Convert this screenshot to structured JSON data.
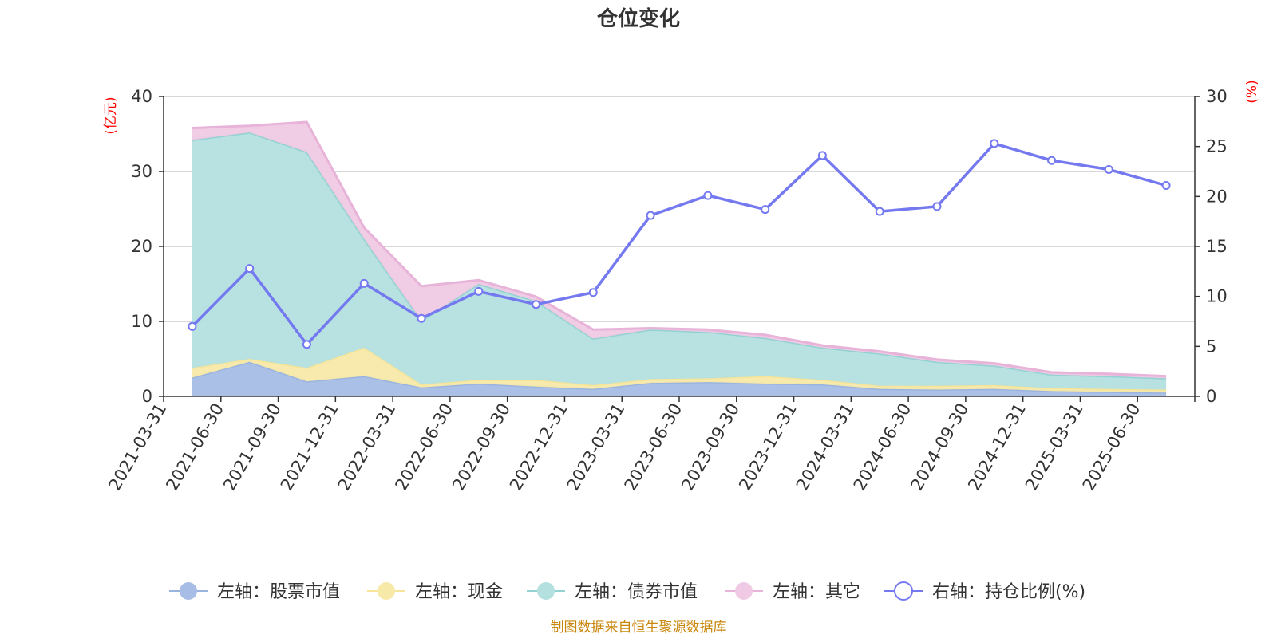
{
  "chart_data": {
    "type": "area",
    "title": "仓位变化",
    "left_unit": "(亿元)",
    "right_unit": "(%)",
    "categories": [
      "2021-03-31",
      "2021-06-30",
      "2021-09-30",
      "2021-12-31",
      "2022-03-31",
      "2022-06-30",
      "2022-09-30",
      "2022-12-31",
      "2023-03-31",
      "2023-06-30",
      "2023-09-30",
      "2023-12-31",
      "2024-03-31",
      "2024-06-30",
      "2024-09-30",
      "2024-12-31",
      "2025-03-31",
      "2025-06-30"
    ],
    "left_axis": {
      "min": 0,
      "max": 40,
      "ticks": [
        "0",
        "10",
        "20",
        "30",
        "40"
      ]
    },
    "right_axis": {
      "min": 0,
      "max": 30,
      "ticks": [
        "0",
        "5",
        "10",
        "15",
        "20",
        "25",
        "30"
      ]
    },
    "stacked_series": [
      {
        "name": "左轴：股票市值",
        "color": "#a7bde6",
        "line_color": "#9ab4e0",
        "values": [
          2.5,
          4.6,
          2.0,
          2.7,
          1.2,
          1.7,
          1.3,
          1.0,
          1.8,
          1.9,
          1.7,
          1.6,
          1.0,
          0.9,
          1.0,
          0.7,
          0.6,
          0.5
        ]
      },
      {
        "name": "左轴：现金",
        "color": "#f7e9a8",
        "line_color": "#f5e49a",
        "values": [
          1.3,
          0.4,
          1.8,
          3.8,
          0.4,
          0.5,
          0.9,
          0.5,
          0.5,
          0.5,
          1.0,
          0.6,
          0.4,
          0.5,
          0.5,
          0.4,
          0.4,
          0.4
        ]
      },
      {
        "name": "左轴：债券市值",
        "color": "#b4e0e0",
        "line_color": "#93d2d2",
        "values": [
          30.4,
          30.2,
          28.8,
          14.5,
          8.5,
          12.8,
          10.5,
          6.2,
          6.6,
          6.2,
          5.1,
          4.3,
          4.3,
          3.2,
          2.6,
          1.8,
          1.7,
          1.5
        ]
      },
      {
        "name": "左轴：其它",
        "color": "#f0c9e4",
        "line_color": "#e7b3d8",
        "values": [
          1.6,
          0.9,
          4.0,
          1.5,
          4.6,
          0.5,
          0.6,
          1.2,
          0.2,
          0.3,
          0.4,
          0.3,
          0.3,
          0.3,
          0.3,
          0.3,
          0.3,
          0.3
        ]
      }
    ],
    "line_series": {
      "name": "右轴：持仓比例(%)",
      "color": "#7579f0",
      "values": [
        7.0,
        12.8,
        5.2,
        11.3,
        7.8,
        10.5,
        9.2,
        10.4,
        18.1,
        20.1,
        18.7,
        24.1,
        18.5,
        19.0,
        25.3,
        23.6,
        22.7,
        21.1
      ]
    },
    "legend_position": "bottom",
    "grid": true
  },
  "source_text": "制图数据来自恒生聚源数据库"
}
